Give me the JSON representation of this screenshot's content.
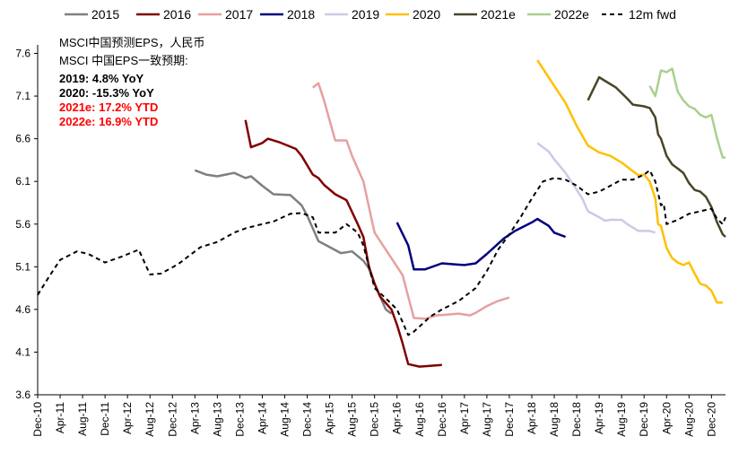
{
  "chart_data": {
    "type": "line",
    "title": "",
    "xlabel": "",
    "ylabel": "",
    "ylim": [
      3.6,
      7.7
    ],
    "yticks": [
      3.6,
      4.1,
      4.6,
      5.1,
      5.6,
      6.1,
      6.6,
      7.1,
      7.6
    ],
    "ytick_labels": [
      "3.6",
      "4.1",
      "4.6",
      "5.1",
      "5.6",
      "6.1",
      "6.6",
      "7.1",
      "7.6"
    ],
    "x_start": "Dec-10",
    "x_end_month_index": 122.5,
    "xtick_labels": [
      "Dec-10",
      "Apr-11",
      "Aug-11",
      "Dec-11",
      "Apr-12",
      "Aug-12",
      "Dec-12",
      "Apr-13",
      "Aug-13",
      "Dec-13",
      "Apr-14",
      "Aug-14",
      "Dec-14",
      "Apr-15",
      "Aug-15",
      "Dec-15",
      "Apr-16",
      "Aug-16",
      "Dec-16",
      "Apr-17",
      "Aug-17",
      "Dec-17",
      "Apr-18",
      "Aug-18",
      "Dec-18",
      "Apr-19",
      "Aug-19",
      "Dec-19",
      "Apr-20",
      "Aug-20",
      "Dec-20"
    ],
    "legend_position": "top",
    "annotations": [
      {
        "text": "MSCI中国预测EPS，人民币",
        "color": "#000000",
        "bold": false
      },
      {
        "text": "MSCI 中国EPS一致预期:",
        "color": "#000000",
        "bold": false
      },
      {
        "text": "2019: 4.8% YoY",
        "color": "#000000",
        "bold": true
      },
      {
        "text": "2020: -15.3% YoY",
        "color": "#000000",
        "bold": true
      },
      {
        "text": "2021e: 17.2% YTD",
        "color": "#ff0000",
        "bold": true
      },
      {
        "text": "2022e: 16.9% YTD",
        "color": "#ff0000",
        "bold": true
      }
    ],
    "series": [
      {
        "name": "2015",
        "color": "#7f7f7f",
        "dash": false,
        "width": 2.5,
        "points": [
          [
            28,
            6.23
          ],
          [
            30,
            6.18
          ],
          [
            32,
            6.16
          ],
          [
            35,
            6.2
          ],
          [
            36,
            6.17
          ],
          [
            37,
            6.14
          ],
          [
            38,
            6.16
          ],
          [
            40,
            6.05
          ],
          [
            42,
            5.95
          ],
          [
            45,
            5.94
          ],
          [
            47,
            5.82
          ],
          [
            48,
            5.7
          ],
          [
            49,
            5.55
          ],
          [
            50,
            5.4
          ],
          [
            52,
            5.33
          ],
          [
            54,
            5.26
          ],
          [
            56,
            5.28
          ],
          [
            58,
            5.17
          ],
          [
            59,
            5.08
          ],
          [
            60,
            4.9
          ],
          [
            61,
            4.75
          ],
          [
            62,
            4.6
          ],
          [
            63,
            4.55
          ]
        ]
      },
      {
        "name": "2016",
        "color": "#800000",
        "dash": false,
        "width": 2.5,
        "points": [
          [
            37,
            6.82
          ],
          [
            38,
            6.5
          ],
          [
            40,
            6.55
          ],
          [
            41,
            6.6
          ],
          [
            43,
            6.56
          ],
          [
            46,
            6.48
          ],
          [
            47,
            6.4
          ],
          [
            49,
            6.18
          ],
          [
            50,
            6.14
          ],
          [
            51,
            6.06
          ],
          [
            53,
            5.95
          ],
          [
            55,
            5.88
          ],
          [
            57,
            5.6
          ],
          [
            58,
            5.45
          ],
          [
            59,
            5.1
          ],
          [
            60,
            4.9
          ],
          [
            61,
            4.75
          ],
          [
            63,
            4.6
          ],
          [
            64,
            4.42
          ],
          [
            65,
            4.2
          ],
          [
            66,
            3.96
          ],
          [
            68,
            3.93
          ],
          [
            72,
            3.95
          ]
        ]
      },
      {
        "name": "2017",
        "color": "#e6a0a0",
        "dash": false,
        "width": 2.5,
        "points": [
          [
            49,
            7.2
          ],
          [
            50,
            7.25
          ],
          [
            51,
            7.05
          ],
          [
            53,
            6.58
          ],
          [
            55,
            6.58
          ],
          [
            56,
            6.4
          ],
          [
            58,
            6.1
          ],
          [
            59,
            5.8
          ],
          [
            60,
            5.5
          ],
          [
            62,
            5.3
          ],
          [
            63,
            5.2
          ],
          [
            65,
            5.0
          ],
          [
            66,
            4.75
          ],
          [
            67,
            4.5
          ],
          [
            69,
            4.49
          ],
          [
            71,
            4.53
          ],
          [
            73,
            4.54
          ],
          [
            75,
            4.55
          ],
          [
            77,
            4.53
          ],
          [
            78,
            4.56
          ],
          [
            80,
            4.64
          ],
          [
            82,
            4.7
          ],
          [
            84,
            4.74
          ]
        ]
      },
      {
        "name": "2018",
        "color": "#00007f",
        "dash": false,
        "width": 2.5,
        "points": [
          [
            64,
            5.62
          ],
          [
            66,
            5.35
          ],
          [
            67,
            5.07
          ],
          [
            69,
            5.07
          ],
          [
            72,
            5.14
          ],
          [
            74,
            5.13
          ],
          [
            76,
            5.12
          ],
          [
            78,
            5.14
          ],
          [
            80,
            5.25
          ],
          [
            83,
            5.43
          ],
          [
            85,
            5.52
          ],
          [
            88,
            5.62
          ],
          [
            89,
            5.66
          ],
          [
            91,
            5.58
          ],
          [
            92,
            5.5
          ],
          [
            94,
            5.45
          ]
        ]
      },
      {
        "name": "2019",
        "color": "#cfc8e6",
        "dash": false,
        "width": 2.5,
        "points": [
          [
            89,
            6.55
          ],
          [
            91,
            6.45
          ],
          [
            92,
            6.36
          ],
          [
            94,
            6.2
          ],
          [
            96,
            6.0
          ],
          [
            97,
            5.9
          ],
          [
            98,
            5.75
          ],
          [
            100,
            5.68
          ],
          [
            101,
            5.64
          ],
          [
            102,
            5.65
          ],
          [
            104,
            5.65
          ],
          [
            105,
            5.6
          ],
          [
            107,
            5.52
          ],
          [
            109,
            5.52
          ],
          [
            110,
            5.5
          ]
        ]
      },
      {
        "name": "2020",
        "color": "#ffc000",
        "dash": false,
        "width": 2.5,
        "points": [
          [
            89,
            7.52
          ],
          [
            90,
            7.42
          ],
          [
            92,
            7.22
          ],
          [
            94,
            7.02
          ],
          [
            96,
            6.75
          ],
          [
            98,
            6.52
          ],
          [
            100,
            6.44
          ],
          [
            102,
            6.4
          ],
          [
            104,
            6.32
          ],
          [
            106,
            6.22
          ],
          [
            107,
            6.17
          ],
          [
            108,
            6.18
          ],
          [
            109,
            6.1
          ],
          [
            110,
            5.9
          ],
          [
            110.5,
            5.6
          ],
          [
            111,
            5.58
          ],
          [
            112,
            5.32
          ],
          [
            113,
            5.2
          ],
          [
            114,
            5.15
          ],
          [
            115,
            5.12
          ],
          [
            116,
            5.15
          ],
          [
            117,
            5.02
          ],
          [
            118,
            4.9
          ],
          [
            119,
            4.88
          ],
          [
            120,
            4.82
          ],
          [
            121,
            4.68
          ],
          [
            122,
            4.68
          ]
        ]
      },
      {
        "name": "2021e",
        "color": "#4a4529",
        "dash": false,
        "width": 2.5,
        "points": [
          [
            98,
            7.05
          ],
          [
            100,
            7.32
          ],
          [
            101,
            7.28
          ],
          [
            103,
            7.2
          ],
          [
            105,
            7.07
          ],
          [
            106,
            7.0
          ],
          [
            108,
            6.98
          ],
          [
            109,
            6.96
          ],
          [
            110,
            6.85
          ],
          [
            110.5,
            6.65
          ],
          [
            111,
            6.6
          ],
          [
            112,
            6.4
          ],
          [
            113,
            6.3
          ],
          [
            114,
            6.25
          ],
          [
            115,
            6.2
          ],
          [
            116,
            6.08
          ],
          [
            117,
            6.0
          ],
          [
            118,
            5.98
          ],
          [
            119,
            5.92
          ],
          [
            120,
            5.8
          ],
          [
            121,
            5.62
          ],
          [
            122,
            5.48
          ],
          [
            122.5,
            5.45
          ]
        ]
      },
      {
        "name": "2022e",
        "color": "#a9d08e",
        "dash": false,
        "width": 2.5,
        "points": [
          [
            109,
            7.22
          ],
          [
            110,
            7.1
          ],
          [
            111,
            7.4
          ],
          [
            112,
            7.38
          ],
          [
            113,
            7.42
          ],
          [
            114,
            7.15
          ],
          [
            115,
            7.05
          ],
          [
            116,
            6.98
          ],
          [
            117,
            6.95
          ],
          [
            118,
            6.88
          ],
          [
            119,
            6.85
          ],
          [
            120,
            6.88
          ],
          [
            121,
            6.6
          ],
          [
            122,
            6.38
          ],
          [
            122.5,
            6.38
          ]
        ]
      },
      {
        "name": "12m fwd",
        "color": "#000000",
        "dash": true,
        "width": 2,
        "points": [
          [
            0,
            4.77
          ],
          [
            2,
            4.98
          ],
          [
            4,
            5.18
          ],
          [
            7,
            5.28
          ],
          [
            9,
            5.25
          ],
          [
            12,
            5.15
          ],
          [
            15,
            5.22
          ],
          [
            18,
            5.3
          ],
          [
            20,
            5.01
          ],
          [
            22,
            5.02
          ],
          [
            25,
            5.13
          ],
          [
            29,
            5.33
          ],
          [
            32,
            5.39
          ],
          [
            35,
            5.5
          ],
          [
            37,
            5.55
          ],
          [
            40,
            5.6
          ],
          [
            42,
            5.63
          ],
          [
            45,
            5.72
          ],
          [
            47,
            5.73
          ],
          [
            49,
            5.68
          ],
          [
            50,
            5.5
          ],
          [
            53,
            5.5
          ],
          [
            55,
            5.6
          ],
          [
            57,
            5.5
          ],
          [
            58,
            5.35
          ],
          [
            60,
            4.85
          ],
          [
            62,
            4.73
          ],
          [
            64,
            4.6
          ],
          [
            66,
            4.3
          ],
          [
            67,
            4.34
          ],
          [
            70,
            4.52
          ],
          [
            72,
            4.6
          ],
          [
            75,
            4.7
          ],
          [
            78,
            4.85
          ],
          [
            80,
            5.05
          ],
          [
            82,
            5.3
          ],
          [
            84,
            5.48
          ],
          [
            86,
            5.68
          ],
          [
            88,
            5.9
          ],
          [
            90,
            6.1
          ],
          [
            92,
            6.14
          ],
          [
            94,
            6.12
          ],
          [
            96,
            6.05
          ],
          [
            98,
            5.95
          ],
          [
            100,
            5.98
          ],
          [
            102,
            6.05
          ],
          [
            104,
            6.12
          ],
          [
            106,
            6.12
          ],
          [
            108,
            6.18
          ],
          [
            109,
            6.23
          ],
          [
            110,
            6.1
          ],
          [
            111,
            5.82
          ],
          [
            111.5,
            5.84
          ],
          [
            112,
            5.6
          ],
          [
            114,
            5.65
          ],
          [
            116,
            5.72
          ],
          [
            118,
            5.75
          ],
          [
            120,
            5.78
          ],
          [
            121,
            5.66
          ],
          [
            122,
            5.6
          ],
          [
            122.5,
            5.68
          ]
        ]
      }
    ]
  }
}
